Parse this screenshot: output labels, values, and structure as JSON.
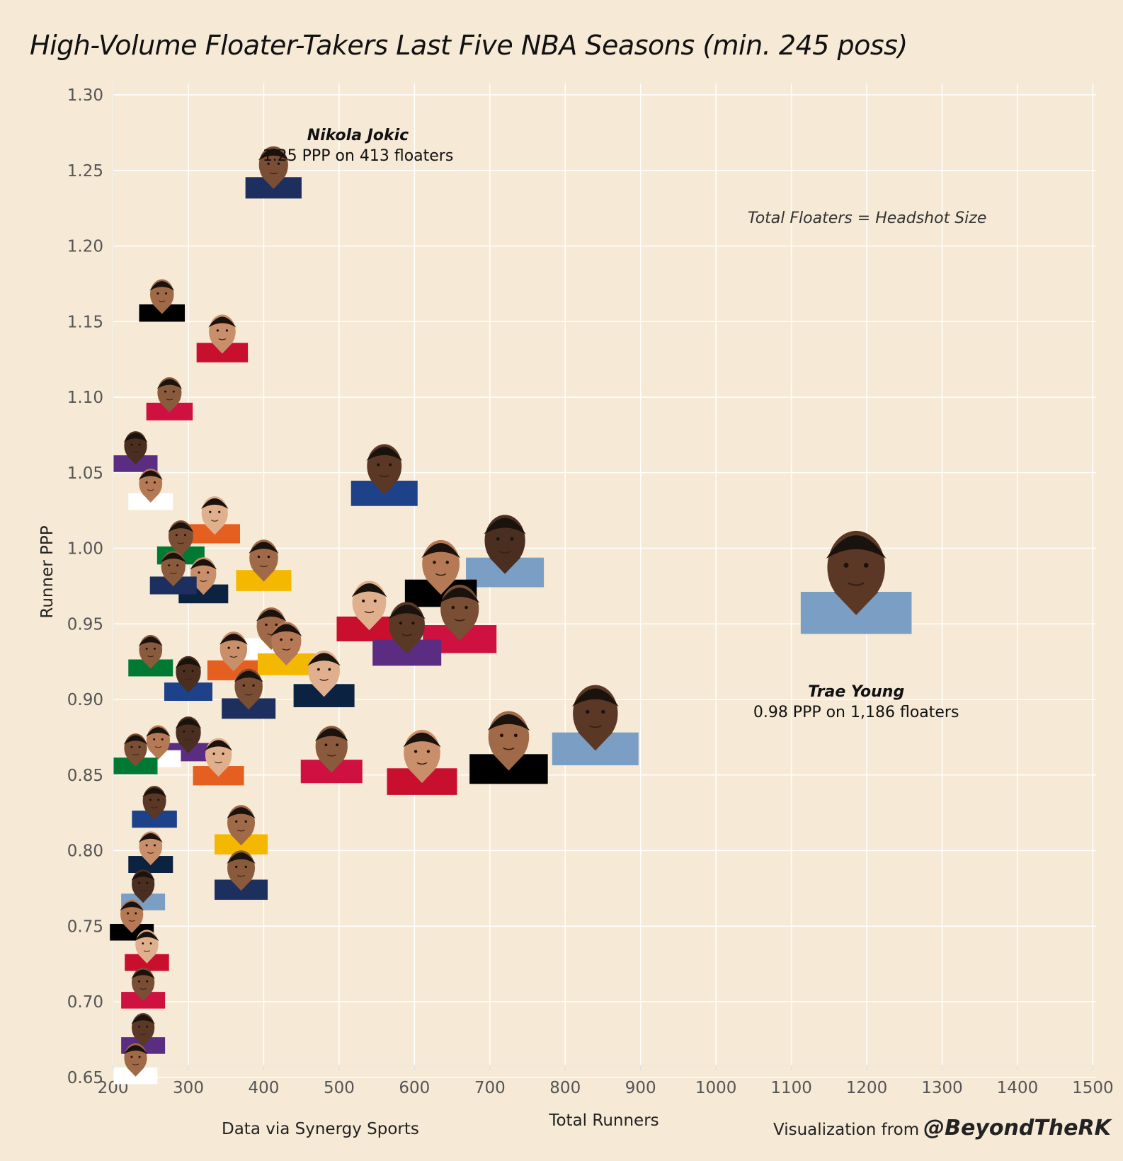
{
  "title": "High-Volume Floater-Takers Last Five NBA Seasons (min. 245 poss)",
  "size_note": "Total Floaters = Headshot Size",
  "footer": {
    "source": "Data via Synergy Sports",
    "credit_prefix": "Visualization from",
    "credit_handle": "@BeyondTheRK"
  },
  "annotations": [
    {
      "player": "Nikola Jokic",
      "text": "1.25 PPP on 413 floaters",
      "x": 413,
      "y": 1.25
    },
    {
      "player": "Trae Young",
      "text": "0.98 PPP on 1,186 floaters",
      "x": 1186,
      "y": 0.98
    }
  ],
  "colors": {
    "background": "#f6e9d6",
    "grid": "#ffffff",
    "axis_text": "#555555"
  },
  "chart_data": {
    "type": "scatter",
    "title": "High-Volume Floater-Takers Last Five NBA Seasons (min. 245 poss)",
    "xlabel": "Total Runners",
    "ylabel": "Runner PPP",
    "xlim": [
      175,
      1500
    ],
    "ylim": [
      0.64,
      1.31
    ],
    "xticks": [
      "200",
      "300",
      "400",
      "500",
      "600",
      "700",
      "800",
      "900",
      "1000",
      "1100",
      "1200",
      "1300",
      "1400",
      "1500"
    ],
    "yticks": [
      "1.30",
      "1.25",
      "1.20",
      "1.15",
      "1.10",
      "1.05",
      "1.00",
      "0.95",
      "0.90",
      "0.85",
      "0.80",
      "0.75",
      "0.70",
      "0.65"
    ],
    "grid": true,
    "marker": "player headshot (size = total floaters)",
    "points": [
      {
        "player": "Nikola Jokic",
        "x": 413,
        "y": 1.25
      },
      {
        "player": "Trae Young",
        "x": 1186,
        "y": 0.98
      },
      {
        "x": 265,
        "y": 1.165
      },
      {
        "x": 345,
        "y": 1.14
      },
      {
        "x": 275,
        "y": 1.1
      },
      {
        "x": 230,
        "y": 1.065
      },
      {
        "x": 250,
        "y": 1.04
      },
      {
        "x": 335,
        "y": 1.02
      },
      {
        "x": 290,
        "y": 1.005
      },
      {
        "x": 560,
        "y": 1.05
      },
      {
        "x": 400,
        "y": 0.99
      },
      {
        "x": 320,
        "y": 0.98
      },
      {
        "x": 280,
        "y": 0.985
      },
      {
        "x": 720,
        "y": 1.0
      },
      {
        "x": 635,
        "y": 0.985
      },
      {
        "x": 540,
        "y": 0.96
      },
      {
        "x": 660,
        "y": 0.955
      },
      {
        "x": 590,
        "y": 0.945
      },
      {
        "x": 410,
        "y": 0.945
      },
      {
        "x": 360,
        "y": 0.93
      },
      {
        "x": 250,
        "y": 0.93
      },
      {
        "x": 300,
        "y": 0.915
      },
      {
        "x": 430,
        "y": 0.935
      },
      {
        "x": 480,
        "y": 0.915
      },
      {
        "x": 380,
        "y": 0.905
      },
      {
        "x": 840,
        "y": 0.885
      },
      {
        "x": 725,
        "y": 0.87
      },
      {
        "x": 610,
        "y": 0.86
      },
      {
        "x": 490,
        "y": 0.865
      },
      {
        "x": 300,
        "y": 0.875
      },
      {
        "x": 260,
        "y": 0.87
      },
      {
        "x": 340,
        "y": 0.86
      },
      {
        "x": 230,
        "y": 0.865
      },
      {
        "x": 255,
        "y": 0.83
      },
      {
        "x": 370,
        "y": 0.815
      },
      {
        "x": 250,
        "y": 0.8
      },
      {
        "x": 370,
        "y": 0.785
      },
      {
        "x": 240,
        "y": 0.775
      },
      {
        "x": 225,
        "y": 0.755
      },
      {
        "x": 245,
        "y": 0.735
      },
      {
        "x": 240,
        "y": 0.71
      },
      {
        "x": 240,
        "y": 0.68
      },
      {
        "x": 230,
        "y": 0.66
      }
    ]
  }
}
